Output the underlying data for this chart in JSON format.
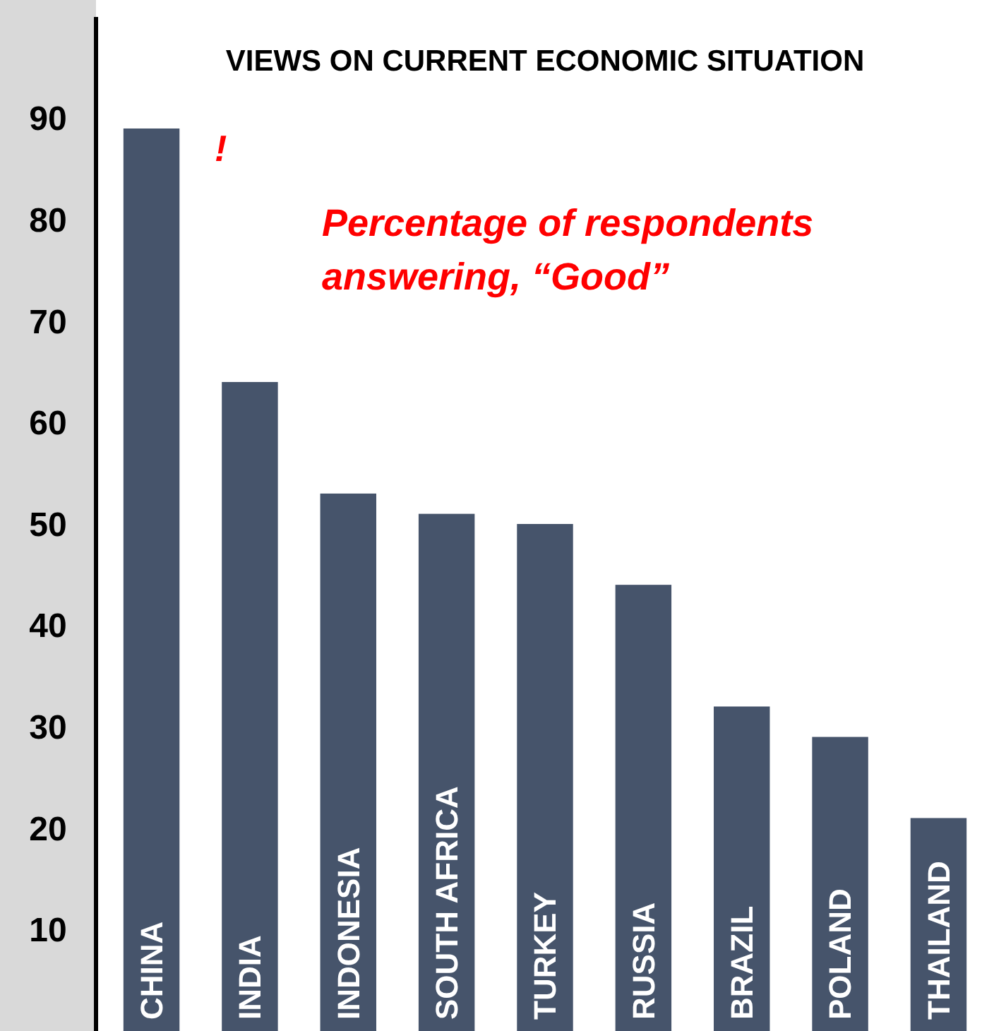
{
  "chart_data": {
    "type": "bar",
    "title": "VIEWS ON CURRENT ECONOMIC SITUATION",
    "categories": [
      "CHINA",
      "INDIA",
      "INDONESIA",
      "SOUTH AFRICA",
      "TURKEY",
      "RUSSIA",
      "BRAZIL",
      "POLAND",
      "THAILAND"
    ],
    "values": [
      89,
      64,
      53,
      51,
      50,
      44,
      32,
      29,
      21
    ],
    "color": "#46546b",
    "ylim": [
      0,
      100
    ],
    "yticks": [
      10,
      20,
      30,
      40,
      50,
      60,
      70,
      80,
      90
    ],
    "grid": false,
    "annotations": [
      "!",
      "Percentage of respondents\nanswering, “Good”"
    ]
  }
}
